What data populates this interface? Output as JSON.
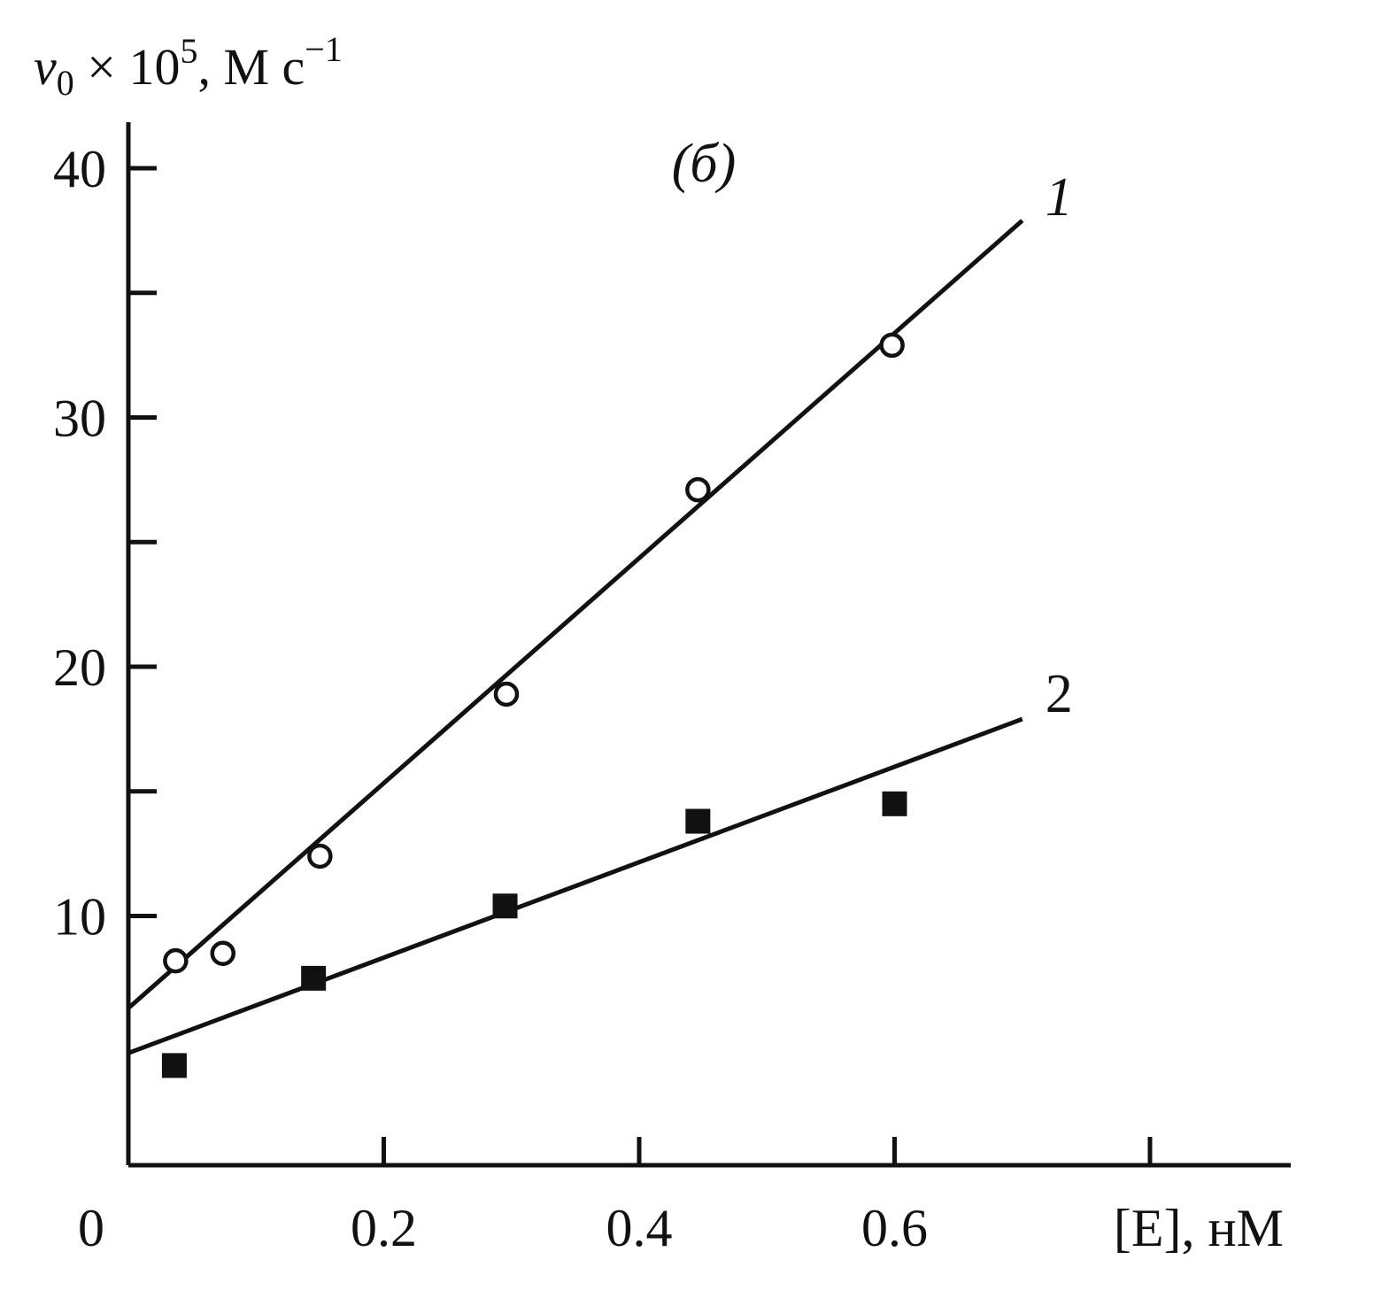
{
  "chart_data": {
    "type": "scatter",
    "panel_label": "(б)",
    "ylabel": {
      "symbol": "v",
      "subscript": "0",
      "multiplier": " × 10",
      "exponent": "5",
      "unit": ", M c",
      "unit_exponent": "−1"
    },
    "xlabel": "[E], нM",
    "origin_label": "0",
    "xlim": [
      0,
      0.9
    ],
    "ylim": [
      0,
      42
    ],
    "x_ticks": [
      0.2,
      0.4,
      0.6,
      0.8
    ],
    "x_tick_labels": [
      "0.2",
      "0.4",
      "0.6"
    ],
    "y_ticks": [
      10,
      15,
      20,
      25,
      30,
      35,
      40
    ],
    "y_tick_labels": [
      "10",
      "20",
      "30",
      "40"
    ],
    "y_tick_label_values": [
      10,
      20,
      30,
      40
    ],
    "x_tick_label_values": [
      0.2,
      0.4,
      0.6
    ],
    "series": [
      {
        "label": "1",
        "marker": "open-circle",
        "points": [
          {
            "x": 0.037,
            "y": 8.2
          },
          {
            "x": 0.074,
            "y": 8.5
          },
          {
            "x": 0.15,
            "y": 12.4
          },
          {
            "x": 0.296,
            "y": 18.9
          },
          {
            "x": 0.446,
            "y": 27.1
          },
          {
            "x": 0.598,
            "y": 32.9
          }
        ],
        "fit_line": [
          {
            "x": 0.0,
            "y": 6.3
          },
          {
            "x": 0.7,
            "y": 37.9
          }
        ]
      },
      {
        "label": "2",
        "marker": "filled-square",
        "points": [
          {
            "x": 0.036,
            "y": 4.0
          },
          {
            "x": 0.145,
            "y": 7.5
          },
          {
            "x": 0.295,
            "y": 10.4
          },
          {
            "x": 0.446,
            "y": 13.8
          },
          {
            "x": 0.6,
            "y": 14.5
          }
        ],
        "fit_line": [
          {
            "x": 0.0,
            "y": 4.5
          },
          {
            "x": 0.7,
            "y": 17.9
          }
        ]
      }
    ]
  }
}
